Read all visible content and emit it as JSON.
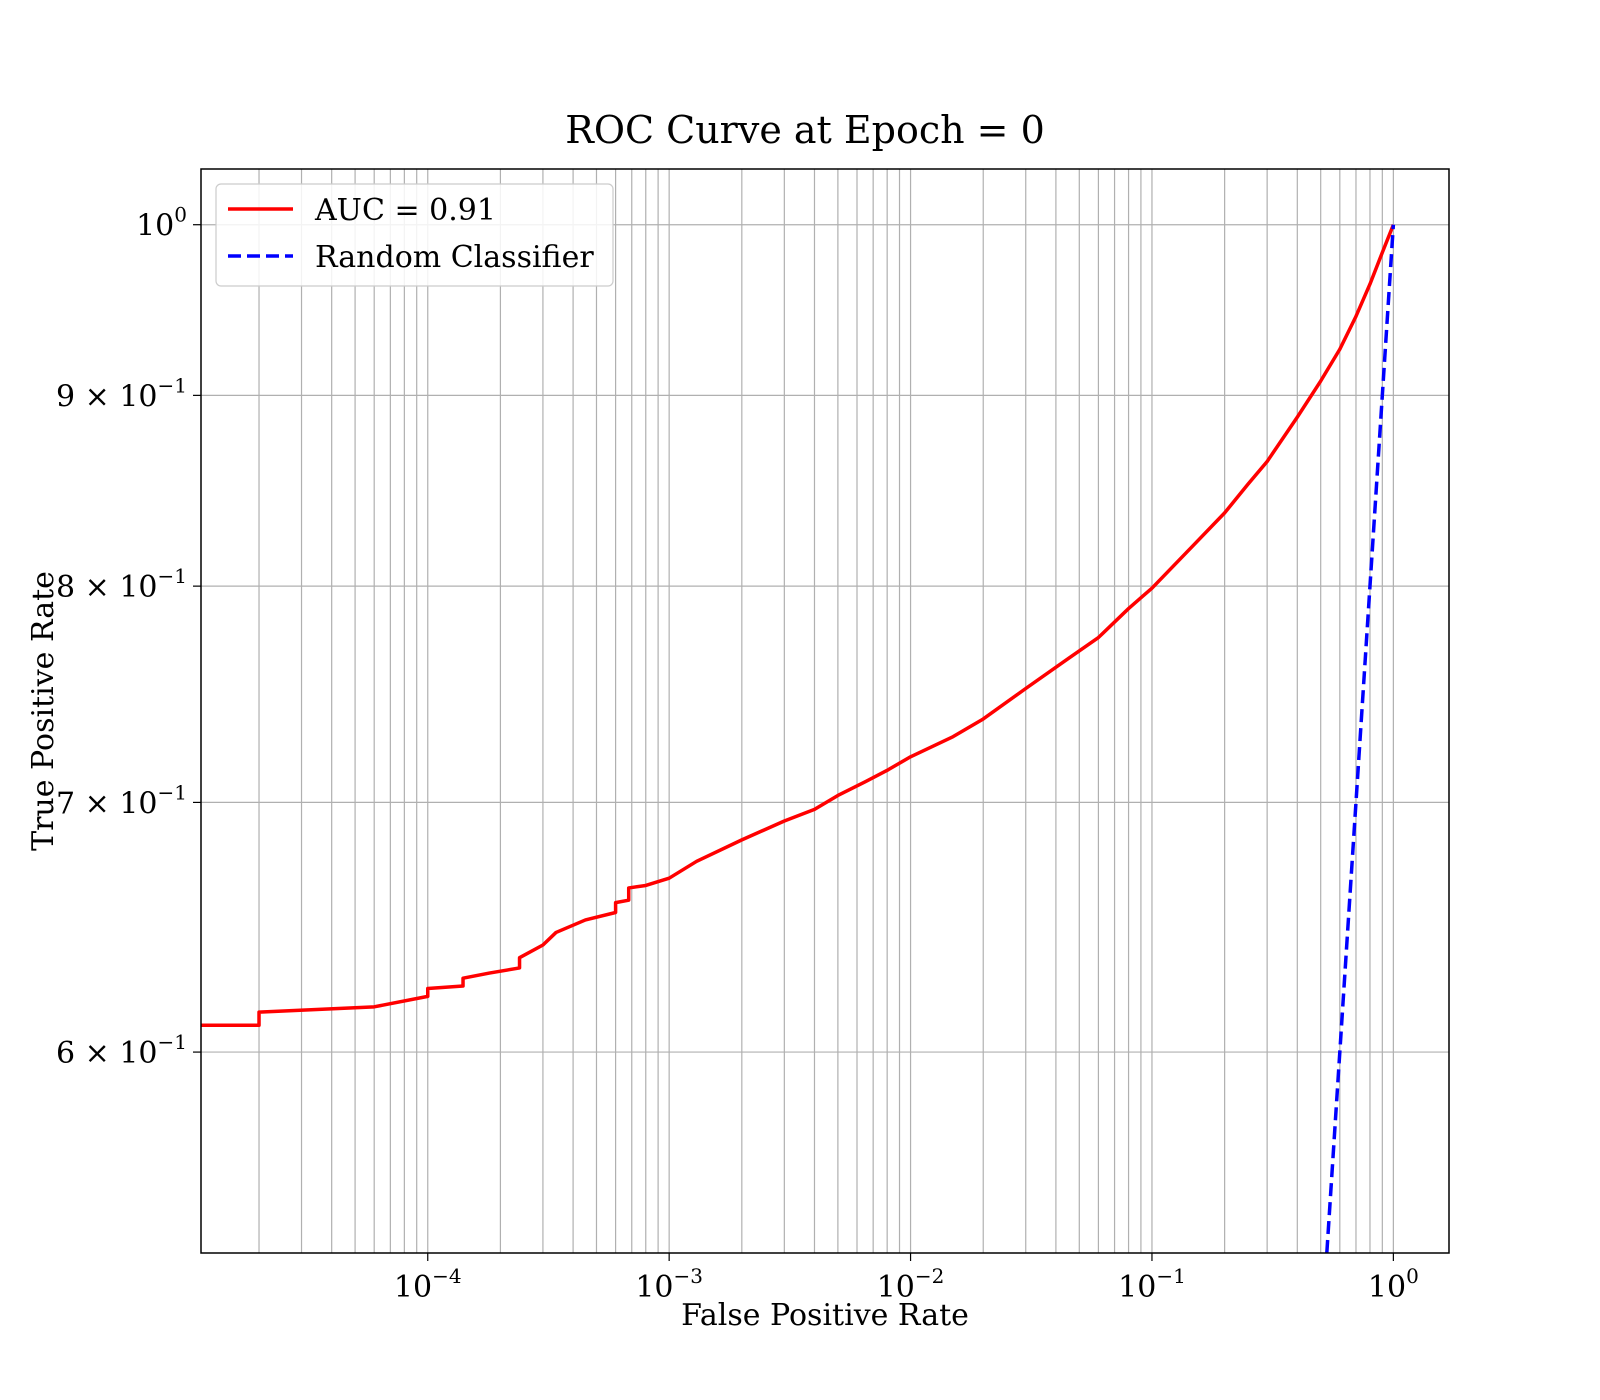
{
  "chart_data": {
    "type": "line",
    "title": "ROC Curve at Epoch = 0",
    "xlabel": "False Positive Rate",
    "ylabel": "True Positive Rate",
    "xscale": "log",
    "yscale": "log",
    "xlim": [
      1.15e-05,
      1.7
    ],
    "ylim": [
      0.53,
      1.035
    ],
    "grid": true,
    "grid_which": "both",
    "legend_position": "top-left",
    "x_ticks": [
      {
        "value": 0.0001,
        "base": "10",
        "exp": "−4"
      },
      {
        "value": 0.001,
        "base": "10",
        "exp": "−3"
      },
      {
        "value": 0.01,
        "base": "10",
        "exp": "−2"
      },
      {
        "value": 0.1,
        "base": "10",
        "exp": "−1"
      },
      {
        "value": 1,
        "base": "10",
        "exp": "0"
      }
    ],
    "y_ticks": [
      {
        "value": 1.0,
        "base": "10",
        "exp": "0"
      },
      {
        "value": 0.9,
        "base": "9 × 10",
        "exp": "−1"
      },
      {
        "value": 0.8,
        "base": "8 × 10",
        "exp": "−1"
      },
      {
        "value": 0.7,
        "base": "7 × 10",
        "exp": "−1"
      },
      {
        "value": 0.6,
        "base": "6 × 10",
        "exp": "−1"
      }
    ],
    "series": [
      {
        "name": "AUC = 0.91",
        "color": "#ff0000",
        "style": "solid",
        "x": [
          1.15e-05,
          2e-05,
          2e-05,
          6e-05,
          0.0001,
          0.0001,
          0.00014,
          0.00014,
          0.00018,
          0.00024,
          0.00024,
          0.0003,
          0.00034,
          0.00045,
          0.0006,
          0.0006,
          0.00068,
          0.00068,
          0.0008,
          0.001,
          0.0013,
          0.002,
          0.003,
          0.004,
          0.005,
          0.0065,
          0.008,
          0.01,
          0.015,
          0.02,
          0.03,
          0.045,
          0.06,
          0.08,
          0.1,
          0.15,
          0.2,
          0.25,
          0.3,
          0.4,
          0.5,
          0.6,
          0.7,
          0.8,
          0.9,
          1.0
        ],
        "y": [
          0.61,
          0.61,
          0.615,
          0.617,
          0.621,
          0.624,
          0.625,
          0.628,
          0.63,
          0.632,
          0.636,
          0.641,
          0.646,
          0.651,
          0.654,
          0.658,
          0.659,
          0.664,
          0.665,
          0.668,
          0.675,
          0.684,
          0.692,
          0.697,
          0.703,
          0.709,
          0.714,
          0.72,
          0.729,
          0.737,
          0.751,
          0.765,
          0.775,
          0.789,
          0.799,
          0.821,
          0.837,
          0.852,
          0.864,
          0.888,
          0.908,
          0.926,
          0.945,
          0.964,
          0.983,
          1.0
        ]
      },
      {
        "name": "Random Classifier",
        "color": "#0000ff",
        "style": "dashed",
        "x": [
          0.53,
          1.0
        ],
        "y": [
          0.53,
          1.0
        ]
      }
    ]
  }
}
